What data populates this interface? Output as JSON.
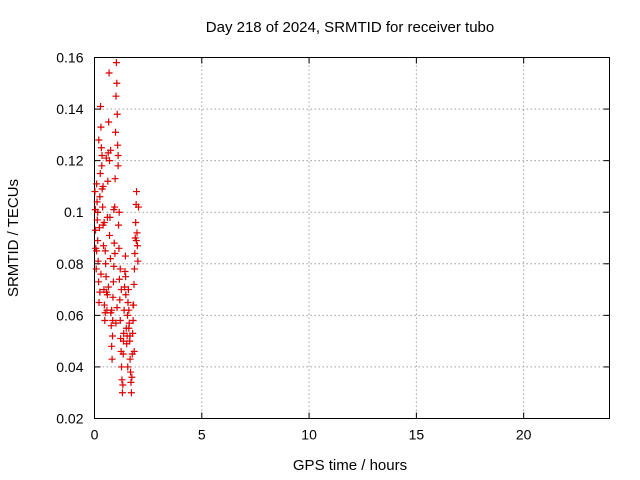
{
  "chart_data": {
    "type": "scatter",
    "title": "Day 218 of 2024, SRMTID for receiver tubo",
    "xlabel": "GPS time / hours",
    "ylabel": "SRMTID / TECUs",
    "xlim": [
      0,
      24
    ],
    "ylim": [
      0.02,
      0.16
    ],
    "xticks": [
      0,
      5,
      10,
      15,
      20
    ],
    "xtick_labels": [
      "0",
      "5",
      "10",
      "15",
      "20"
    ],
    "yticks": [
      0.02,
      0.04,
      0.06,
      0.08,
      0.1,
      0.12,
      0.14,
      0.16
    ],
    "ytick_labels": [
      "0.02",
      "0.04",
      "0.06",
      "0.08",
      "0.1",
      "0.12",
      "0.14",
      "0.16"
    ],
    "grid": true,
    "marker": "+",
    "color": "#dd0000",
    "series": [
      {
        "points": [
          [
            0.02,
            0.108
          ],
          [
            0.04,
            0.101
          ],
          [
            0.05,
            0.093
          ],
          [
            0.06,
            0.086
          ],
          [
            0.08,
            0.078
          ],
          [
            0.1,
            0.111
          ],
          [
            0.12,
            0.104
          ],
          [
            0.13,
            0.097
          ],
          [
            0.15,
            0.089
          ],
          [
            0.17,
            0.081
          ],
          [
            0.19,
            0.073
          ],
          [
            0.21,
            0.065
          ],
          [
            0.23,
            0.094
          ],
          [
            0.25,
            0.106
          ],
          [
            0.27,
            0.115
          ],
          [
            0.28,
            0.141
          ],
          [
            0.3,
            0.133
          ],
          [
            0.32,
            0.125
          ],
          [
            0.34,
            0.118
          ],
          [
            0.36,
            0.109
          ],
          [
            0.38,
            0.102
          ],
          [
            0.4,
            0.095
          ],
          [
            0.42,
            0.087
          ],
          [
            0.44,
            0.07
          ],
          [
            0.46,
            0.064
          ],
          [
            0.48,
            0.058
          ],
          [
            0.5,
            0.085
          ],
          [
            0.52,
            0.08
          ],
          [
            0.54,
            0.075
          ],
          [
            0.56,
            0.069
          ],
          [
            0.58,
            0.062
          ],
          [
            0.6,
            0.098
          ],
          [
            0.62,
            0.112
          ],
          [
            0.64,
            0.123
          ],
          [
            0.66,
            0.135
          ],
          [
            0.68,
            0.154
          ],
          [
            0.7,
            0.12
          ],
          [
            0.72,
            0.098
          ],
          [
            0.74,
            0.082
          ],
          [
            0.76,
            0.061
          ],
          [
            0.78,
            0.056
          ],
          [
            0.8,
            0.048
          ],
          [
            0.82,
            0.043
          ],
          [
            0.84,
            0.052
          ],
          [
            0.86,
            0.067
          ],
          [
            0.88,
            0.073
          ],
          [
            0.9,
            0.079
          ],
          [
            0.92,
            0.088
          ],
          [
            0.94,
            0.102
          ],
          [
            0.96,
            0.113
          ],
          [
            0.98,
            0.131
          ],
          [
            1.0,
            0.145
          ],
          [
            1.02,
            0.158
          ],
          [
            1.04,
            0.15
          ],
          [
            1.06,
            0.138
          ],
          [
            1.08,
            0.126
          ],
          [
            1.1,
            0.118
          ],
          [
            1.12,
            0.095
          ],
          [
            1.14,
            0.086
          ],
          [
            1.16,
            0.074
          ],
          [
            1.18,
            0.066
          ],
          [
            1.2,
            0.058
          ],
          [
            1.22,
            0.051
          ],
          [
            1.24,
            0.046
          ],
          [
            1.26,
            0.04
          ],
          [
            1.28,
            0.035
          ],
          [
            1.3,
            0.03
          ],
          [
            1.32,
            0.033
          ],
          [
            1.34,
            0.045
          ],
          [
            1.36,
            0.053
          ],
          [
            1.38,
            0.062
          ],
          [
            1.4,
            0.071
          ],
          [
            1.42,
            0.077
          ],
          [
            1.44,
            0.083
          ],
          [
            1.46,
            0.068
          ],
          [
            1.48,
            0.055
          ],
          [
            1.5,
            0.049
          ],
          [
            1.52,
            0.052
          ],
          [
            1.54,
            0.06
          ],
          [
            1.56,
            0.065
          ],
          [
            1.58,
            0.07
          ],
          [
            1.6,
            0.062
          ],
          [
            1.62,
            0.057
          ],
          [
            1.64,
            0.05
          ],
          [
            1.66,
            0.043
          ],
          [
            1.68,
            0.038
          ],
          [
            1.7,
            0.034
          ],
          [
            1.72,
            0.03
          ],
          [
            1.74,
            0.036
          ],
          [
            1.76,
            0.045
          ],
          [
            1.78,
            0.053
          ],
          [
            1.8,
            0.058
          ],
          [
            1.82,
            0.064
          ],
          [
            1.84,
            0.072
          ],
          [
            1.86,
            0.078
          ],
          [
            1.88,
            0.084
          ],
          [
            1.9,
            0.09
          ],
          [
            1.92,
            0.096
          ],
          [
            1.94,
            0.103
          ],
          [
            1.96,
            0.108
          ],
          [
            1.98,
            0.092
          ],
          [
            2.0,
            0.087
          ],
          [
            2.02,
            0.081
          ],
          [
            0.2,
            0.128
          ],
          [
            0.35,
            0.122
          ],
          [
            0.55,
            0.121
          ],
          [
            0.75,
            0.124
          ],
          [
            1.1,
            0.122
          ],
          [
            1.15,
            0.1
          ],
          [
            0.9,
            0.101
          ],
          [
            0.45,
            0.096
          ],
          [
            0.15,
            0.1
          ],
          [
            0.1,
            0.085
          ],
          [
            0.3,
            0.076
          ],
          [
            0.65,
            0.071
          ],
          [
            0.85,
            0.058
          ],
          [
            1.05,
            0.063
          ],
          [
            1.25,
            0.07
          ],
          [
            1.45,
            0.075
          ],
          [
            1.65,
            0.052
          ],
          [
            1.85,
            0.046
          ],
          [
            1.55,
            0.04
          ],
          [
            1.35,
            0.05
          ],
          [
            1.2,
            0.078
          ],
          [
            0.95,
            0.084
          ],
          [
            0.7,
            0.091
          ],
          [
            0.5,
            0.061
          ],
          [
            0.25,
            0.069
          ],
          [
            0.4,
            0.11
          ],
          [
            0.6,
            0.068
          ],
          [
            0.8,
            0.062
          ],
          [
            1.0,
            0.057
          ],
          [
            1.6,
            0.055
          ],
          [
            1.8,
            0.064
          ],
          [
            1.95,
            0.089
          ],
          [
            2.05,
            0.102
          ]
        ]
      }
    ]
  }
}
